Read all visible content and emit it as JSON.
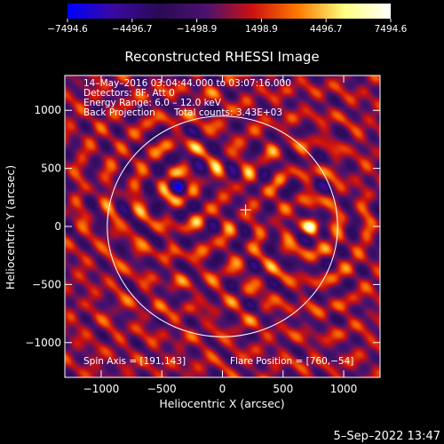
{
  "chart_data": {
    "type": "heatmap",
    "title": "Reconstructed RHESSI Image",
    "xlabel": "Heliocentric X (arcsec)",
    "ylabel": "Heliocentric Y (arcsec)",
    "xlim": [
      -1300,
      1300
    ],
    "ylim": [
      -1300,
      1300
    ],
    "xticks": [
      -1000,
      -500,
      0,
      500,
      1000
    ],
    "xtick_labels": [
      "−1000",
      "−500",
      "0",
      "500",
      "1000"
    ],
    "yticks": [
      -1000,
      -500,
      0,
      500,
      1000
    ],
    "ytick_labels": [
      "−1000",
      "−500",
      "0",
      "500",
      "1000"
    ],
    "colorbar": {
      "range": [
        -7494.6,
        7494.6
      ],
      "ticks": [
        -7494.6,
        -4496.7,
        -1498.9,
        1498.9,
        4496.7,
        7494.6
      ],
      "tick_labels": [
        "−7494.6",
        "−4496.7",
        "−1498.9",
        "1498.9",
        "4496.7",
        "7494.6"
      ],
      "colors": [
        "#0000ff",
        "#3a0aa0",
        "#2a0a55",
        "#4a1270",
        "#cc1010",
        "#ff7a00",
        "#ffff80",
        "#ffffff"
      ]
    },
    "annotations": [
      "14–May–2016 03:04:44.000 to 03:07:16.000",
      "Detectors: 8F, Att 0",
      "Energy Range: 6.0 – 12.0 keV",
      "Back Projection",
      "Total counts: 3.43E+03"
    ],
    "spin_axis_label": "Spin Axis = [191,143]",
    "spin_axis": [
      191,
      143
    ],
    "flare_position_label": "Flare Position = [760,−54]",
    "flare_position": [
      760,
      -54
    ],
    "solar_disk_radius": 950,
    "sources": [
      {
        "x": 740,
        "y": 0,
        "value": 7494.6
      },
      {
        "x": -370,
        "y": 350,
        "value": -4496.7
      }
    ]
  },
  "timestamp": "5–Sep–2022 13:47"
}
